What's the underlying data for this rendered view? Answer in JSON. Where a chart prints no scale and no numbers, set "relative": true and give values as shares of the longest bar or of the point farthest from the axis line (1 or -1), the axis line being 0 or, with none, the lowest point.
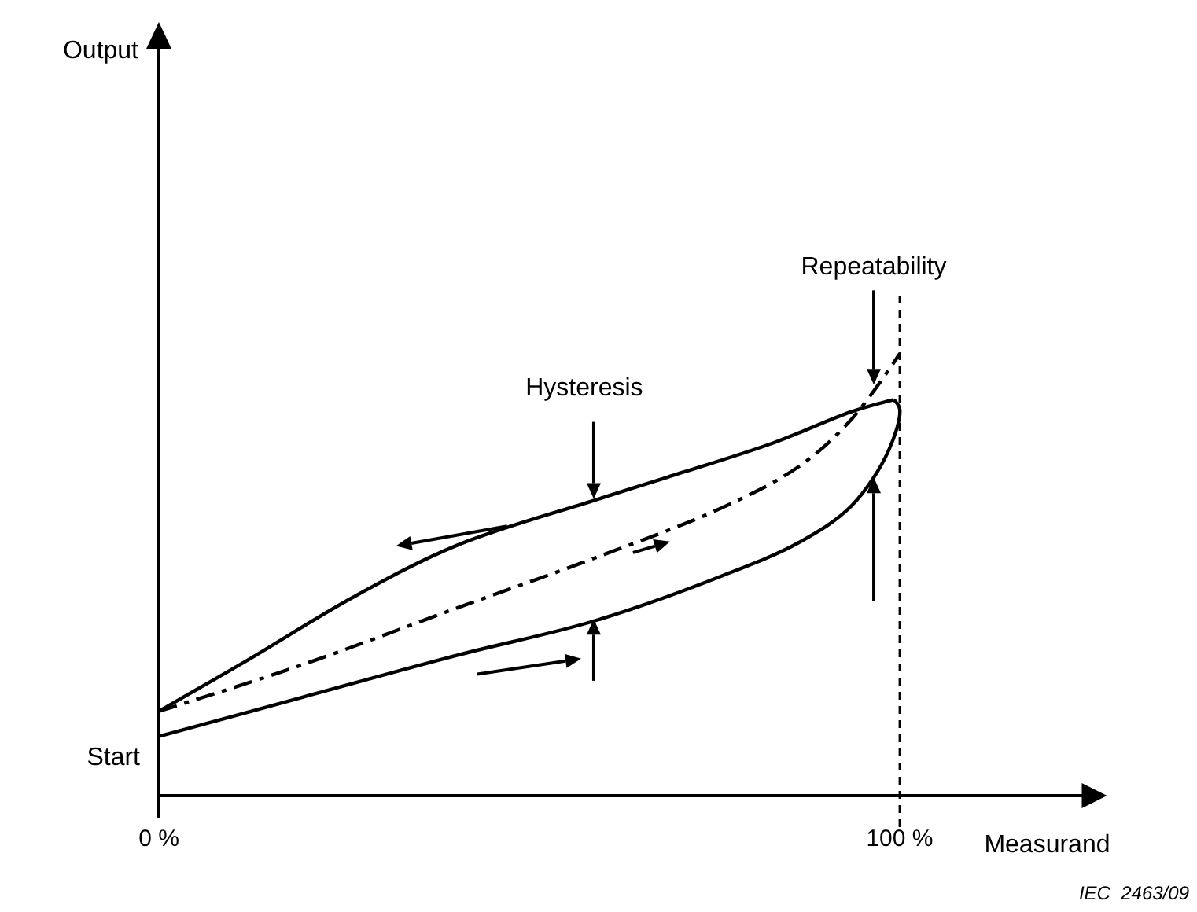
{
  "chart_data": {
    "type": "line",
    "relative": true,
    "xlabel": "Measurand",
    "xlim": [
      0,
      125
    ],
    "xticks": [
      {
        "value": 0,
        "label": "0 %"
      },
      {
        "value": 100,
        "label": "100 %"
      }
    ],
    "tick_labels": "x",
    "marker": "none",
    "series": [
      {
        "color": "#000000",
        "line_style": "solid",
        "x": [
          0,
          19,
          40.3,
          58.7,
          75.8,
          86.4,
          93.5,
          98.5,
          100,
          99.2
        ],
        "values": [
          0.134,
          0.221,
          0.318,
          0.395,
          0.496,
          0.573,
          0.656,
          0.781,
          0.875,
          0.896
        ]
      },
      {
        "color": "#000000",
        "line_style": "solid",
        "x": [
          0,
          11.9,
          26.1,
          40.3,
          58.7,
          68.7,
          82.9,
          93.5,
          99.2
        ],
        "values": [
          0.191,
          0.306,
          0.448,
          0.567,
          0.668,
          0.721,
          0.798,
          0.869,
          0.896
        ]
      },
      {
        "color": "#000000",
        "line_style": "dashed",
        "x": [
          0,
          19,
          40.3,
          58.7,
          75.8,
          86.4,
          93.5,
          100
        ],
        "values": [
          0.191,
          0.294,
          0.425,
          0.537,
          0.65,
          0.745,
          0.852,
          1.0
        ]
      }
    ],
    "ref_lines": [
      {
        "axis": "x",
        "value": 100,
        "line_style": "dashed",
        "color": "#000000"
      }
    ],
    "annotations": [
      "Hysteresis",
      "Repeatability",
      "Start",
      "IEC  2463/09",
      "Output"
    ]
  }
}
